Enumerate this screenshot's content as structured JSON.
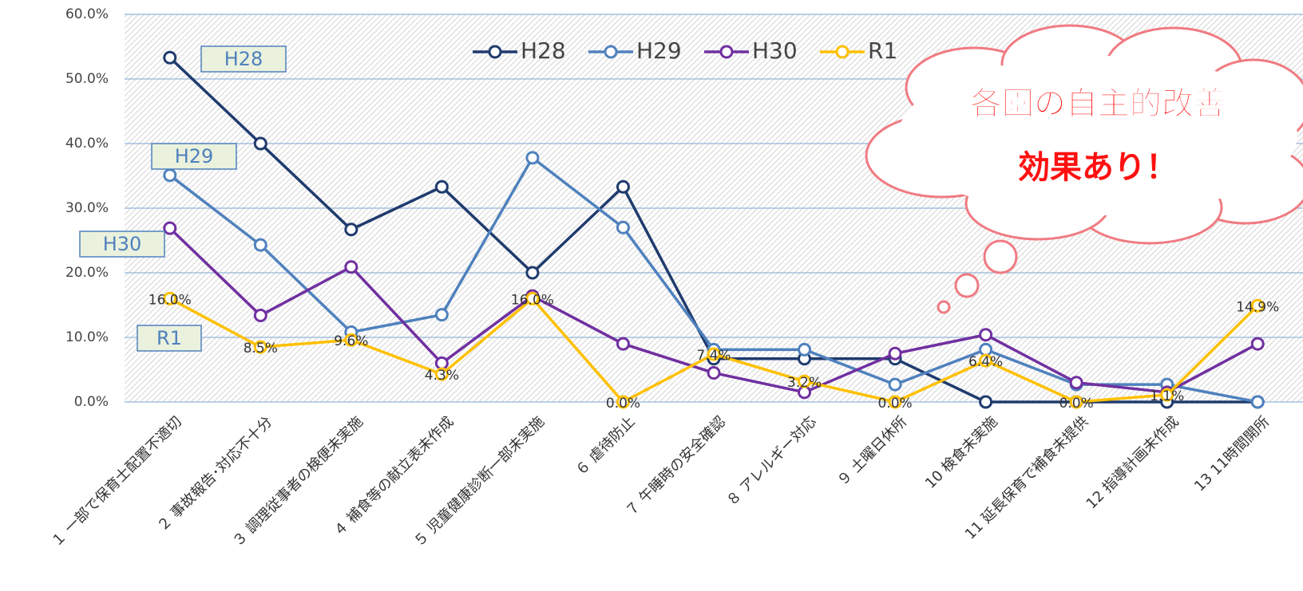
{
  "chart_data": {
    "type": "line",
    "categories": [
      "１ 一部で保育士配置不適切",
      "２ 事故報告･対応不十分",
      "３ 調理従事者の検便未実施",
      "４ 補食等の献立表未作成",
      "５ 児童健康診断一部未実施",
      "６ 虐待防止",
      "７ 午睡時の安全確認",
      "８ アレルギー対応",
      "９ 土曜日休所",
      "10 検食未実施",
      "11 延長保育で補食未提供",
      "12 指導計画未作成",
      "13 11時間開所"
    ],
    "series": [
      {
        "name": "H28",
        "color": "#1f3b6e",
        "values": [
          53.3,
          40.0,
          26.7,
          33.3,
          20.0,
          33.3,
          6.7,
          6.7,
          6.7,
          0,
          0,
          0,
          0
        ]
      },
      {
        "name": "H29",
        "color": "#4f81bd",
        "values": [
          35.1,
          24.3,
          10.8,
          13.5,
          37.8,
          27.0,
          8.1,
          8.1,
          2.7,
          8.1,
          2.7,
          2.7,
          0
        ]
      },
      {
        "name": "H30",
        "color": "#7030a0",
        "values": [
          26.9,
          13.4,
          20.9,
          6.0,
          16.4,
          9.0,
          4.5,
          1.5,
          7.5,
          10.4,
          3.0,
          1.5,
          9.0
        ]
      },
      {
        "name": "R1",
        "color": "#ffc000",
        "values": [
          16.0,
          8.5,
          9.6,
          4.3,
          16.0,
          0.0,
          7.4,
          3.2,
          0.0,
          6.4,
          0.0,
          1.1,
          14.9
        ],
        "value_labels": [
          "16.0%",
          "8.5%",
          "9.6%",
          "4.3%",
          "16.0%",
          "0.0%",
          "7.4%",
          "3.2%",
          "0.0%",
          "6.4%",
          "0.0%",
          "1.1%",
          "14.9%"
        ]
      }
    ],
    "ylim": [
      0,
      60
    ],
    "yticks": [
      {
        "value": 0,
        "label": "0.0%"
      },
      {
        "value": 10,
        "label": "10.0%"
      },
      {
        "value": 20,
        "label": "20.0%"
      },
      {
        "value": 30,
        "label": "30.0%"
      },
      {
        "value": 40,
        "label": "40.0%"
      },
      {
        "value": 50,
        "label": "50.0%"
      },
      {
        "value": 60,
        "label": "60.0%"
      }
    ],
    "grid": true,
    "legend": "top",
    "annotations": [
      "H28",
      "H29",
      "H30",
      "R1"
    ],
    "callout": [
      "各園の自主的改善",
      "効果あり！"
    ]
  }
}
